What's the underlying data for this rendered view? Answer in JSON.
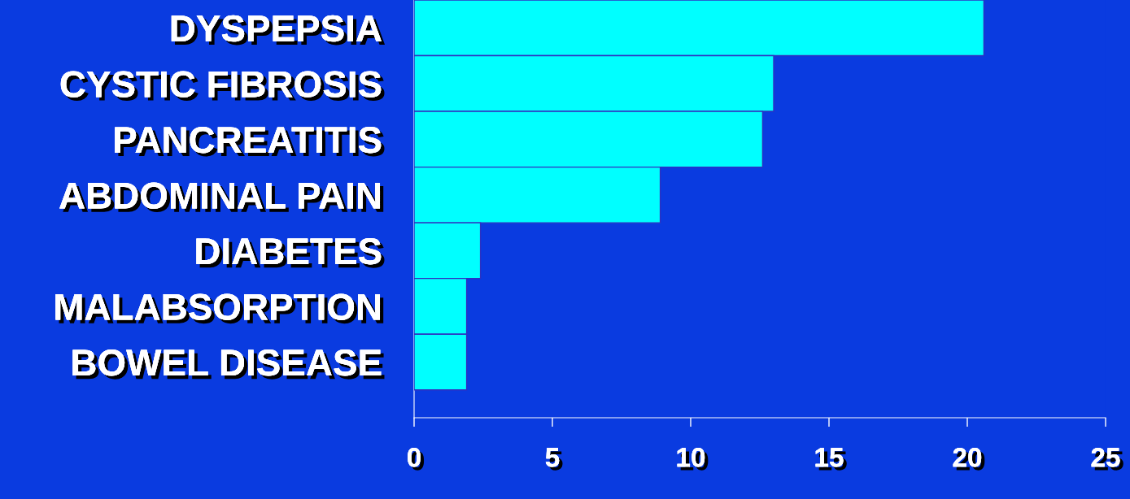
{
  "chart_data": {
    "type": "bar",
    "orientation": "horizontal",
    "categories": [
      "DYSPEPSIA",
      "CYSTIC FIBROSIS",
      "PANCREATITIS",
      "ABDOMINAL PAIN",
      "DIABETES",
      "MALABSORPTION",
      "BOWEL DISEASE"
    ],
    "values": [
      20.6,
      13.0,
      12.6,
      8.9,
      2.4,
      1.9,
      1.9
    ],
    "color": "#00ffff",
    "xlim": [
      0,
      25
    ],
    "xticks": [
      0,
      5,
      10,
      15,
      20,
      25
    ],
    "grid": false
  }
}
